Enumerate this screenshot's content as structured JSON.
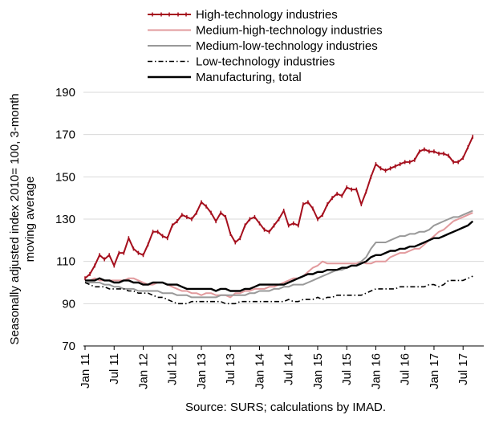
{
  "chart_data": {
    "type": "line",
    "ylabel_line1": "Seasonally adjusted index 2010= 100, 3-month",
    "ylabel_line2": "moving average",
    "source": "Source: SURS; calculations by IMAD.",
    "ylim": [
      70,
      190
    ],
    "yticks": [
      "190",
      "170",
      "150",
      "130",
      "110",
      "90",
      "70"
    ],
    "ytick_values": [
      190,
      170,
      150,
      130,
      110,
      90,
      70
    ],
    "xticks": [
      {
        "label": "Jan 11",
        "x": 0
      },
      {
        "label": "Jul 11",
        "x": 6
      },
      {
        "label": "Jan 12",
        "x": 12
      },
      {
        "label": "Jul 12",
        "x": 18
      },
      {
        "label": "Jan 13",
        "x": 24
      },
      {
        "label": "Jul 13",
        "x": 30
      },
      {
        "label": "Jan 14",
        "x": 36
      },
      {
        "label": "Jul 14",
        "x": 42
      },
      {
        "label": "Jan 15",
        "x": 48
      },
      {
        "label": "Jul 15",
        "x": 54
      },
      {
        "label": "Jan 16",
        "x": 60
      },
      {
        "label": "Jul 16",
        "x": 66
      },
      {
        "label": "Jan 17",
        "x": 72
      },
      {
        "label": "Jul 17",
        "x": 78
      }
    ],
    "x_period": {
      "start": "Jan 2011",
      "end": "Nov 2017",
      "unit": "month"
    },
    "grid": "horizontal",
    "legend_position": "top",
    "series": [
      {
        "name": "High-technology industries",
        "color": "#a50f1d",
        "style": "solid-markers",
        "values": [
          102,
          104,
          108,
          113,
          111,
          113,
          108,
          114,
          114,
          121,
          116,
          114,
          113,
          118,
          124,
          124,
          122,
          121,
          127,
          129,
          132,
          131,
          130,
          133,
          138,
          136,
          133,
          129,
          133,
          131,
          123,
          119,
          121,
          127,
          130,
          131,
          128,
          125,
          124,
          127,
          130,
          134,
          127,
          128,
          127,
          137,
          138,
          135,
          130,
          132,
          137,
          140,
          142,
          141,
          145,
          144,
          144,
          137,
          143,
          150,
          156,
          154,
          153,
          154,
          155,
          156,
          157,
          157,
          158,
          162,
          163,
          162,
          162,
          161,
          161,
          160,
          157,
          157,
          159,
          164,
          169
        ]
      },
      {
        "name": "Medium-high-technology industries",
        "color": "#e29a9d",
        "style": "solid",
        "values": [
          101,
          101,
          102,
          101,
          101,
          101,
          101,
          101,
          101,
          102,
          102,
          101,
          100,
          99,
          99,
          100,
          100,
          99,
          98,
          97,
          96,
          96,
          95,
          95,
          94,
          95,
          95,
          94,
          94,
          94,
          93,
          95,
          95,
          96,
          96,
          97,
          97,
          97,
          98,
          98,
          99,
          100,
          101,
          102,
          102,
          103,
          105,
          107,
          108,
          110,
          109,
          109,
          109,
          109,
          109,
          109,
          109,
          110,
          109,
          109,
          110,
          110,
          110,
          112,
          113,
          114,
          114,
          115,
          116,
          116,
          118,
          120,
          122,
          124,
          125,
          127,
          129,
          130,
          131,
          132,
          133
        ]
      },
      {
        "name": "Medium-low-technology industries",
        "color": "#999999",
        "style": "solid",
        "values": [
          100,
          100,
          100,
          100,
          99,
          99,
          98,
          98,
          97,
          97,
          97,
          96,
          96,
          96,
          96,
          96,
          95,
          95,
          95,
          94,
          94,
          94,
          93,
          93,
          93,
          93,
          93,
          93,
          94,
          94,
          94,
          94,
          94,
          94,
          95,
          95,
          96,
          96,
          96,
          97,
          97,
          98,
          98,
          99,
          99,
          99,
          100,
          101,
          102,
          103,
          104,
          105,
          106,
          106,
          107,
          108,
          108,
          110,
          112,
          116,
          119,
          119,
          119,
          120,
          121,
          122,
          122,
          123,
          123,
          124,
          124,
          125,
          127,
          128,
          129,
          130,
          131,
          131,
          132,
          133,
          134
        ]
      },
      {
        "name": "Low-technology industries",
        "color": "#000000",
        "style": "dashdot",
        "values": [
          100,
          99,
          98,
          98,
          98,
          97,
          97,
          97,
          97,
          96,
          96,
          95,
          95,
          95,
          94,
          93,
          93,
          92,
          91,
          90,
          90,
          90,
          91,
          91,
          91,
          91,
          91,
          91,
          91,
          90,
          90,
          90,
          91,
          91,
          91,
          91,
          91,
          91,
          91,
          91,
          91,
          91,
          92,
          91,
          91,
          92,
          92,
          92,
          93,
          92,
          93,
          93,
          94,
          94,
          94,
          94,
          94,
          94,
          95,
          96,
          97,
          97,
          97,
          97,
          97,
          98,
          98,
          98,
          98,
          98,
          98,
          99,
          99,
          98,
          99,
          101,
          101,
          101,
          101,
          102,
          103
        ]
      },
      {
        "name": "Manufacturing, total",
        "color": "#000000",
        "style": "solid-thick",
        "values": [
          101,
          101,
          101,
          102,
          101,
          101,
          100,
          100,
          101,
          101,
          100,
          100,
          99,
          99,
          100,
          100,
          100,
          99,
          99,
          99,
          98,
          97,
          97,
          97,
          97,
          97,
          97,
          96,
          97,
          97,
          96,
          96,
          96,
          97,
          97,
          98,
          99,
          99,
          99,
          99,
          99,
          99,
          100,
          101,
          102,
          103,
          104,
          104,
          105,
          105,
          106,
          106,
          106,
          107,
          107,
          108,
          108,
          109,
          110,
          112,
          113,
          113,
          114,
          115,
          115,
          116,
          116,
          117,
          117,
          118,
          119,
          120,
          121,
          121,
          122,
          123,
          124,
          125,
          126,
          127,
          129
        ]
      }
    ]
  }
}
